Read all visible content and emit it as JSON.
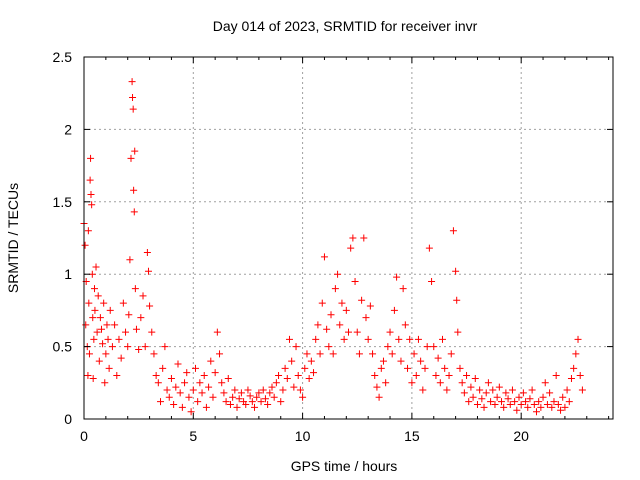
{
  "chart_data": {
    "type": "scatter",
    "title": "Day 014 of 2023, SRMTID for receiver invr",
    "xlabel": "GPS time / hours",
    "ylabel": "SRMTID / TECUs",
    "xlim": [
      0,
      24.2
    ],
    "ylim": [
      0,
      2.5
    ],
    "xticks": [
      0,
      5,
      10,
      15,
      20
    ],
    "yticks": [
      0,
      0.5,
      1,
      1.5,
      2,
      2.5
    ],
    "xtick_labels": [
      "0",
      "5",
      "10",
      "15",
      "20"
    ],
    "ytick_labels": [
      "0",
      "0.5",
      "1",
      "1.5",
      "2",
      "2.5"
    ],
    "grid": true,
    "marker": "+",
    "series": [
      {
        "name": "SRMTID",
        "color": "#ff0000",
        "points": [
          [
            0.0,
            1.35
          ],
          [
            0.05,
            1.2
          ],
          [
            0.08,
            0.65
          ],
          [
            0.1,
            0.95
          ],
          [
            0.15,
            0.5
          ],
          [
            0.18,
            0.3
          ],
          [
            0.2,
            1.3
          ],
          [
            0.22,
            0.8
          ],
          [
            0.25,
            0.45
          ],
          [
            0.28,
            1.65
          ],
          [
            0.3,
            1.8
          ],
          [
            0.32,
            1.55
          ],
          [
            0.35,
            1.48
          ],
          [
            0.38,
            1.0
          ],
          [
            0.4,
            0.7
          ],
          [
            0.42,
            0.28
          ],
          [
            0.45,
            0.55
          ],
          [
            0.48,
            0.9
          ],
          [
            0.5,
            0.75
          ],
          [
            0.55,
            1.05
          ],
          [
            0.6,
            0.6
          ],
          [
            0.65,
            0.85
          ],
          [
            0.7,
            0.4
          ],
          [
            0.75,
            0.7
          ],
          [
            0.8,
            0.62
          ],
          [
            0.85,
            0.52
          ],
          [
            0.9,
            0.8
          ],
          [
            0.95,
            0.25
          ],
          [
            1.0,
            0.45
          ],
          [
            1.05,
            0.65
          ],
          [
            1.1,
            0.55
          ],
          [
            1.15,
            0.35
          ],
          [
            1.2,
            0.75
          ],
          [
            1.3,
            0.5
          ],
          [
            1.4,
            0.65
          ],
          [
            1.5,
            0.3
          ],
          [
            1.6,
            0.55
          ],
          [
            1.7,
            0.42
          ],
          [
            1.8,
            0.8
          ],
          [
            1.9,
            0.6
          ],
          [
            2.0,
            0.5
          ],
          [
            2.05,
            0.72
          ],
          [
            2.1,
            1.1
          ],
          [
            2.15,
            1.8
          ],
          [
            2.2,
            2.33
          ],
          [
            2.22,
            2.22
          ],
          [
            2.25,
            2.14
          ],
          [
            2.27,
            1.58
          ],
          [
            2.3,
            1.43
          ],
          [
            2.32,
            1.85
          ],
          [
            2.35,
            0.9
          ],
          [
            2.4,
            0.62
          ],
          [
            2.5,
            0.48
          ],
          [
            2.6,
            0.7
          ],
          [
            2.7,
            0.85
          ],
          [
            2.8,
            0.5
          ],
          [
            2.9,
            1.15
          ],
          [
            2.95,
            1.02
          ],
          [
            3.0,
            0.78
          ],
          [
            3.1,
            0.6
          ],
          [
            3.2,
            0.45
          ],
          [
            3.3,
            0.3
          ],
          [
            3.4,
            0.25
          ],
          [
            3.5,
            0.12
          ],
          [
            3.6,
            0.35
          ],
          [
            3.7,
            0.5
          ],
          [
            3.8,
            0.2
          ],
          [
            3.9,
            0.15
          ],
          [
            4.0,
            0.28
          ],
          [
            4.1,
            0.1
          ],
          [
            4.2,
            0.22
          ],
          [
            4.3,
            0.38
          ],
          [
            4.4,
            0.18
          ],
          [
            4.5,
            0.08
          ],
          [
            4.6,
            0.25
          ],
          [
            4.7,
            0.32
          ],
          [
            4.8,
            0.15
          ],
          [
            4.9,
            0.05
          ],
          [
            5.0,
            0.2
          ],
          [
            5.1,
            0.35
          ],
          [
            5.2,
            0.12
          ],
          [
            5.3,
            0.25
          ],
          [
            5.4,
            0.18
          ],
          [
            5.5,
            0.3
          ],
          [
            5.6,
            0.08
          ],
          [
            5.7,
            0.22
          ],
          [
            5.8,
            0.4
          ],
          [
            5.9,
            0.15
          ],
          [
            6.0,
            0.32
          ],
          [
            6.1,
            0.6
          ],
          [
            6.2,
            0.45
          ],
          [
            6.3,
            0.25
          ],
          [
            6.4,
            0.18
          ],
          [
            6.5,
            0.12
          ],
          [
            6.6,
            0.28
          ],
          [
            6.7,
            0.1
          ],
          [
            6.8,
            0.15
          ],
          [
            6.9,
            0.2
          ],
          [
            7.0,
            0.08
          ],
          [
            7.1,
            0.14
          ],
          [
            7.2,
            0.18
          ],
          [
            7.3,
            0.12
          ],
          [
            7.4,
            0.1
          ],
          [
            7.5,
            0.2
          ],
          [
            7.6,
            0.16
          ],
          [
            7.7,
            0.12
          ],
          [
            7.8,
            0.08
          ],
          [
            7.9,
            0.15
          ],
          [
            8.0,
            0.18
          ],
          [
            8.1,
            0.12
          ],
          [
            8.2,
            0.2
          ],
          [
            8.3,
            0.14
          ],
          [
            8.4,
            0.1
          ],
          [
            8.5,
            0.18
          ],
          [
            8.6,
            0.22
          ],
          [
            8.7,
            0.15
          ],
          [
            8.8,
            0.25
          ],
          [
            8.9,
            0.3
          ],
          [
            9.0,
            0.12
          ],
          [
            9.1,
            0.2
          ],
          [
            9.2,
            0.35
          ],
          [
            9.3,
            0.28
          ],
          [
            9.4,
            0.55
          ],
          [
            9.5,
            0.4
          ],
          [
            9.6,
            0.22
          ],
          [
            9.7,
            0.5
          ],
          [
            9.8,
            0.3
          ],
          [
            9.9,
            0.2
          ],
          [
            10.0,
            0.15
          ],
          [
            10.1,
            0.35
          ],
          [
            10.2,
            0.45
          ],
          [
            10.3,
            0.28
          ],
          [
            10.4,
            0.4
          ],
          [
            10.5,
            0.32
          ],
          [
            10.6,
            0.55
          ],
          [
            10.7,
            0.65
          ],
          [
            10.8,
            0.45
          ],
          [
            10.9,
            0.8
          ],
          [
            11.0,
            1.12
          ],
          [
            11.1,
            0.62
          ],
          [
            11.2,
            0.5
          ],
          [
            11.3,
            0.72
          ],
          [
            11.4,
            0.45
          ],
          [
            11.5,
            0.9
          ],
          [
            11.6,
            1.0
          ],
          [
            11.7,
            0.65
          ],
          [
            11.8,
            0.8
          ],
          [
            11.9,
            0.55
          ],
          [
            12.0,
            0.75
          ],
          [
            12.1,
            0.6
          ],
          [
            12.2,
            1.18
          ],
          [
            12.3,
            1.25
          ],
          [
            12.4,
            0.95
          ],
          [
            12.5,
            0.6
          ],
          [
            12.6,
            0.45
          ],
          [
            12.7,
            0.82
          ],
          [
            12.8,
            1.25
          ],
          [
            12.9,
            0.7
          ],
          [
            13.0,
            0.55
          ],
          [
            13.1,
            0.78
          ],
          [
            13.2,
            0.45
          ],
          [
            13.3,
            0.3
          ],
          [
            13.4,
            0.22
          ],
          [
            13.5,
            0.15
          ],
          [
            13.6,
            0.35
          ],
          [
            13.7,
            0.4
          ],
          [
            13.8,
            0.25
          ],
          [
            13.9,
            0.5
          ],
          [
            14.0,
            0.6
          ],
          [
            14.1,
            0.45
          ],
          [
            14.2,
            0.75
          ],
          [
            14.3,
            0.98
          ],
          [
            14.4,
            0.55
          ],
          [
            14.5,
            0.4
          ],
          [
            14.6,
            0.9
          ],
          [
            14.7,
            0.65
          ],
          [
            14.8,
            0.35
          ],
          [
            14.9,
            0.55
          ],
          [
            15.0,
            0.25
          ],
          [
            15.1,
            0.45
          ],
          [
            15.2,
            0.3
          ],
          [
            15.3,
            0.55
          ],
          [
            15.4,
            0.4
          ],
          [
            15.5,
            0.2
          ],
          [
            15.6,
            0.35
          ],
          [
            15.7,
            0.5
          ],
          [
            15.8,
            1.18
          ],
          [
            15.9,
            0.95
          ],
          [
            16.0,
            0.5
          ],
          [
            16.1,
            0.3
          ],
          [
            16.2,
            0.42
          ],
          [
            16.3,
            0.25
          ],
          [
            16.4,
            0.55
          ],
          [
            16.5,
            0.35
          ],
          [
            16.6,
            0.2
          ],
          [
            16.7,
            0.3
          ],
          [
            16.8,
            0.45
          ],
          [
            16.9,
            1.3
          ],
          [
            17.0,
            1.02
          ],
          [
            17.05,
            0.82
          ],
          [
            17.1,
            0.6
          ],
          [
            17.2,
            0.35
          ],
          [
            17.3,
            0.25
          ],
          [
            17.4,
            0.18
          ],
          [
            17.5,
            0.3
          ],
          [
            17.6,
            0.12
          ],
          [
            17.7,
            0.22
          ],
          [
            17.8,
            0.15
          ],
          [
            17.9,
            0.28
          ],
          [
            18.0,
            0.1
          ],
          [
            18.1,
            0.2
          ],
          [
            18.2,
            0.14
          ],
          [
            18.3,
            0.08
          ],
          [
            18.4,
            0.18
          ],
          [
            18.5,
            0.25
          ],
          [
            18.6,
            0.12
          ],
          [
            18.7,
            0.2
          ],
          [
            18.8,
            0.1
          ],
          [
            18.9,
            0.15
          ],
          [
            19.0,
            0.22
          ],
          [
            19.1,
            0.12
          ],
          [
            19.2,
            0.08
          ],
          [
            19.3,
            0.18
          ],
          [
            19.4,
            0.14
          ],
          [
            19.5,
            0.1
          ],
          [
            19.6,
            0.2
          ],
          [
            19.7,
            0.12
          ],
          [
            19.8,
            0.06
          ],
          [
            19.9,
            0.15
          ],
          [
            20.0,
            0.1
          ],
          [
            20.1,
            0.18
          ],
          [
            20.2,
            0.12
          ],
          [
            20.3,
            0.08
          ],
          [
            20.4,
            0.14
          ],
          [
            20.5,
            0.2
          ],
          [
            20.6,
            0.1
          ],
          [
            20.7,
            0.05
          ],
          [
            20.8,
            0.12
          ],
          [
            20.9,
            0.08
          ],
          [
            21.0,
            0.15
          ],
          [
            21.1,
            0.25
          ],
          [
            21.2,
            0.1
          ],
          [
            21.3,
            0.18
          ],
          [
            21.4,
            0.08
          ],
          [
            21.5,
            0.12
          ],
          [
            21.6,
            0.3
          ],
          [
            21.7,
            0.1
          ],
          [
            21.8,
            0.06
          ],
          [
            21.9,
            0.15
          ],
          [
            22.0,
            0.08
          ],
          [
            22.1,
            0.2
          ],
          [
            22.2,
            0.12
          ],
          [
            22.3,
            0.28
          ],
          [
            22.4,
            0.35
          ],
          [
            22.5,
            0.45
          ],
          [
            22.6,
            0.55
          ],
          [
            22.7,
            0.3
          ],
          [
            22.8,
            0.2
          ]
        ]
      }
    ]
  }
}
